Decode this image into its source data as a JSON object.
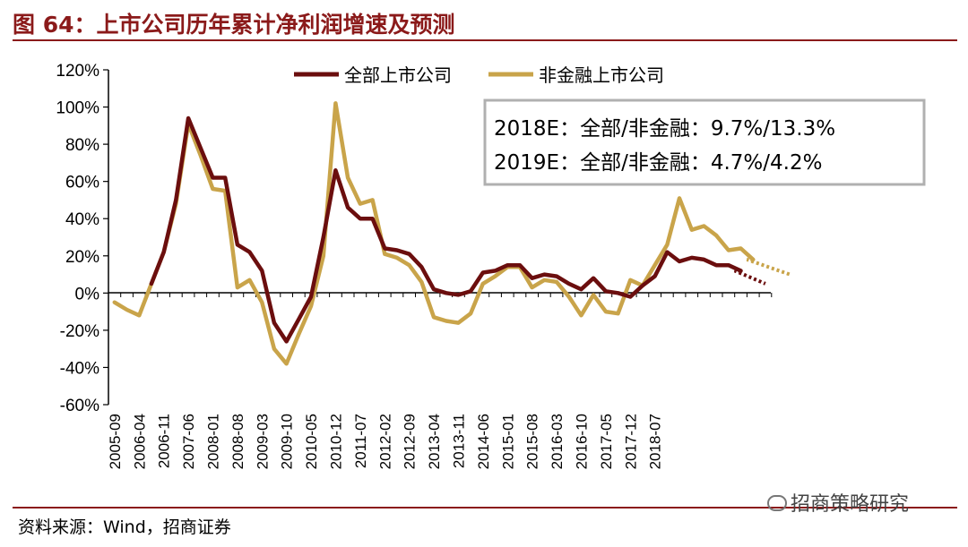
{
  "header": {
    "title": "图 64：上市公司历年累计净利润增速及预测"
  },
  "footer": {
    "source": "资料来源：Wind，招商证券",
    "watermark": "招商策略研究"
  },
  "colors": {
    "all": "#6b0e0e",
    "nonfin": "#c9a44a",
    "axis": "#000000",
    "accent": "#8b1a1a"
  },
  "chart_data": {
    "type": "line",
    "title": "",
    "xlabel": "",
    "ylabel": "",
    "ylim": [
      -60,
      120
    ],
    "yticks": [
      120,
      100,
      80,
      60,
      40,
      20,
      0,
      -20,
      -40,
      -60
    ],
    "ytick_labels": [
      "120%",
      "100%",
      "80%",
      "60%",
      "40%",
      "20%",
      "0%",
      "-20%",
      "-40%",
      "-60%"
    ],
    "x_labels": [
      "2005-09",
      "2006-04",
      "2006-11",
      "2007-06",
      "2008-01",
      "2008-08",
      "2009-03",
      "2009-10",
      "2010-05",
      "2010-12",
      "2011-07",
      "2012-02",
      "2012-09",
      "2013-04",
      "2013-11",
      "2014-06",
      "2015-01",
      "2015-08",
      "2016-03",
      "2016-10",
      "2017-05",
      "2017-12",
      "2018-07"
    ],
    "n_points": 54,
    "series": [
      {
        "name": "全部上市公司",
        "values": [
          null,
          null,
          null,
          5,
          22,
          50,
          94,
          78,
          62,
          62,
          26,
          22,
          12,
          -16,
          -26,
          -14,
          -2,
          30,
          66,
          46,
          40,
          40,
          24,
          23,
          21,
          14,
          2,
          0,
          -1,
          1,
          11,
          12,
          15,
          15,
          8,
          10,
          9,
          5,
          2,
          8,
          1,
          0,
          -2,
          4,
          9,
          22,
          17,
          19,
          18,
          15,
          15,
          12
        ],
        "forecast": [
          [
            51,
            12
          ],
          [
            53.5,
            5
          ]
        ]
      },
      {
        "name": "非金融上市公司",
        "values": [
          -5,
          -9,
          -12,
          5,
          22,
          48,
          91,
          74,
          56,
          55,
          3,
          7,
          -5,
          -30,
          -38,
          -22,
          -7,
          20,
          102,
          62,
          48,
          50,
          21,
          19,
          15,
          6,
          -13,
          -15,
          -16,
          -11,
          5,
          9,
          14,
          14,
          3,
          7,
          6,
          -2,
          -12,
          -1,
          -10,
          -11,
          7,
          4,
          15,
          26,
          51,
          34,
          36,
          31,
          23,
          24,
          18
        ],
        "forecast": [
          [
            52,
            18
          ],
          [
            55.5,
            10
          ]
        ]
      }
    ],
    "legend": {
      "position": "top",
      "entries": [
        "全部上市公司",
        "非金融上市公司"
      ]
    },
    "annotations": [
      "2018E：全部/非金融：9.7%/13.3%",
      "2019E：全部/非金融：4.7%/4.2%"
    ]
  }
}
